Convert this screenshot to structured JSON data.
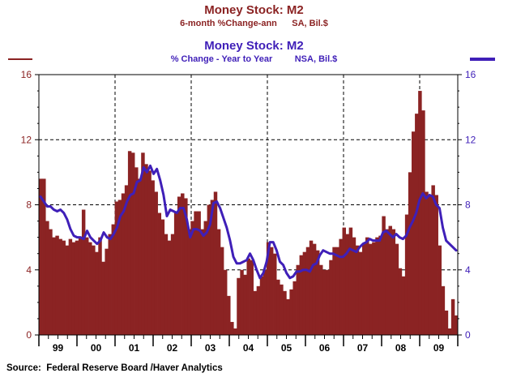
{
  "chart_data": {
    "type": "bar",
    "title": "Money Stock: M2",
    "subtitle": "6-month %Change-ann      SA, Bil.$",
    "title2": "Money Stock: M2",
    "subtitle2": "% Change - Year to Year         NSA, Bil.$",
    "ylim": [
      0,
      16
    ],
    "yticks": [
      0,
      4,
      8,
      12,
      16
    ],
    "x_labels": [
      "99",
      "00",
      "01",
      "02",
      "03",
      "04",
      "05",
      "06",
      "07",
      "08",
      "09"
    ],
    "grid": "dashed",
    "source": "Source:  Federal Reserve Board /Haver Analytics",
    "series": [
      {
        "type": "bar",
        "color": "#8b2323",
        "values": [
          9.6,
          9.6,
          7.0,
          6.5,
          6.0,
          6.1,
          5.9,
          5.8,
          5.5,
          5.9,
          5.7,
          5.8,
          6.0,
          7.7,
          6.0,
          5.7,
          5.5,
          5.1,
          6.0,
          4.5,
          5.3,
          6.2,
          6.8,
          8.2,
          8.3,
          8.7,
          9.2,
          11.3,
          11.2,
          10.3,
          9.6,
          11.2,
          10.5,
          10.1,
          9.5,
          8.8,
          7.5,
          7.1,
          6.2,
          5.8,
          6.2,
          7.6,
          8.5,
          8.7,
          8.4,
          6.5,
          7.0,
          7.6,
          7.6,
          6.5,
          7.0,
          8.0,
          8.3,
          8.8,
          6.5,
          5.4,
          4.0,
          2.4,
          0.8,
          0.4,
          3.5,
          4.0,
          3.7,
          4.7,
          4.6,
          2.7,
          3.0,
          3.6,
          4.0,
          5.7,
          5.4,
          5.0,
          3.4,
          3.1,
          2.7,
          2.2,
          2.8,
          3.3,
          4.3,
          4.9,
          5.1,
          5.4,
          5.8,
          5.6,
          5.2,
          4.3,
          4.0,
          4.0,
          4.6,
          5.4,
          5.4,
          5.9,
          6.6,
          6.2,
          6.6,
          6.0,
          5.5,
          5.1,
          5.6,
          6.0,
          5.6,
          5.7,
          6.0,
          6.1,
          7.3,
          6.5,
          6.7,
          6.5,
          5.6,
          4.1,
          3.6,
          7.4,
          10.0,
          12.5,
          13.6,
          15.0,
          13.8,
          8.8,
          8.5,
          9.2,
          8.6,
          5.5,
          3.0,
          1.5,
          0.4,
          2.2,
          1.2
        ]
      },
      {
        "type": "line",
        "color": "#3f1fb8",
        "values": [
          8.5,
          8.2,
          7.9,
          7.9,
          7.7,
          7.6,
          7.7,
          7.5,
          7.1,
          6.5,
          6.1,
          6.0,
          6.0,
          5.9,
          6.4,
          6.0,
          5.8,
          5.6,
          5.8,
          6.3,
          6.0,
          5.9,
          6.2,
          6.6,
          7.3,
          7.6,
          8.2,
          8.6,
          8.7,
          9.4,
          9.5,
          10.3,
          10.0,
          10.4,
          9.9,
          10.2,
          9.5,
          8.6,
          7.3,
          7.7,
          7.6,
          7.5,
          7.8,
          7.8,
          7.1,
          6.0,
          6.5,
          6.5,
          6.4,
          6.1,
          6.3,
          6.8,
          8.1,
          8.2,
          7.8,
          7.2,
          6.6,
          5.8,
          4.8,
          4.4,
          4.4,
          4.5,
          4.6,
          5.0,
          4.6,
          4.0,
          3.5,
          3.8,
          4.5,
          5.7,
          5.7,
          5.2,
          4.5,
          4.3,
          3.8,
          3.5,
          3.6,
          3.9,
          3.9,
          4.0,
          4.0,
          3.9,
          4.3,
          4.4,
          4.9,
          5.2,
          5.1,
          5.0,
          5.0,
          4.9,
          4.8,
          4.8,
          5.0,
          5.3,
          5.2,
          5.1,
          5.4,
          5.6,
          5.7,
          5.9,
          5.8,
          5.8,
          5.8,
          6.3,
          6.4,
          6.2,
          6.0,
          6.2,
          6.0,
          5.9,
          6.1,
          6.6,
          7.0,
          7.5,
          8.3,
          8.7,
          8.4,
          8.6,
          8.5,
          8.0,
          7.8,
          6.6,
          5.8,
          5.6,
          5.4,
          5.2
        ]
      }
    ]
  },
  "legend": {
    "left_swatch_color": "#8b2323",
    "right_swatch_color": "#3f1fb8"
  }
}
